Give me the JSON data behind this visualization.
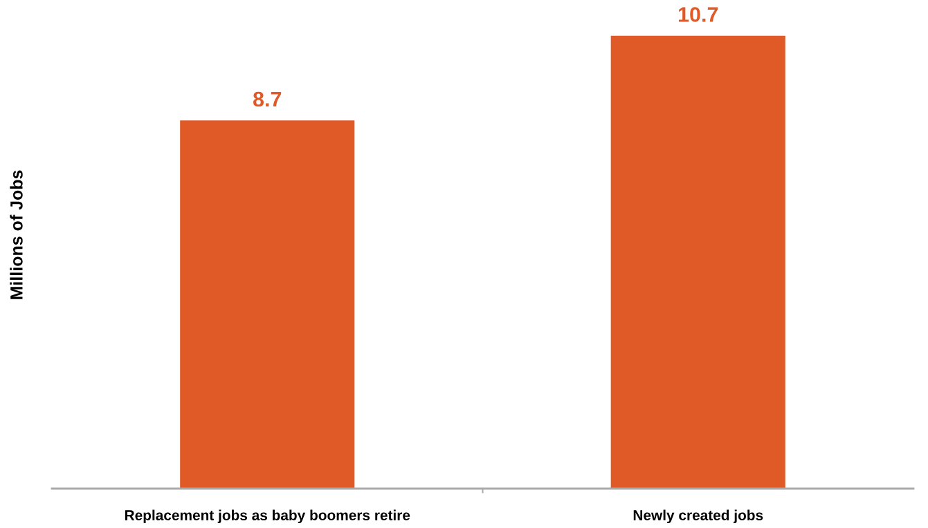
{
  "chart_data": {
    "type": "bar",
    "ylabel": "Millions of Jobs",
    "categories": [
      "Replacement jobs as baby boomers retire",
      "Newly created jobs"
    ],
    "values": [
      8.7,
      10.7
    ],
    "color": "#e05a28",
    "data_labels": true,
    "tick_labels": "x",
    "grid": false,
    "legend": false
  }
}
